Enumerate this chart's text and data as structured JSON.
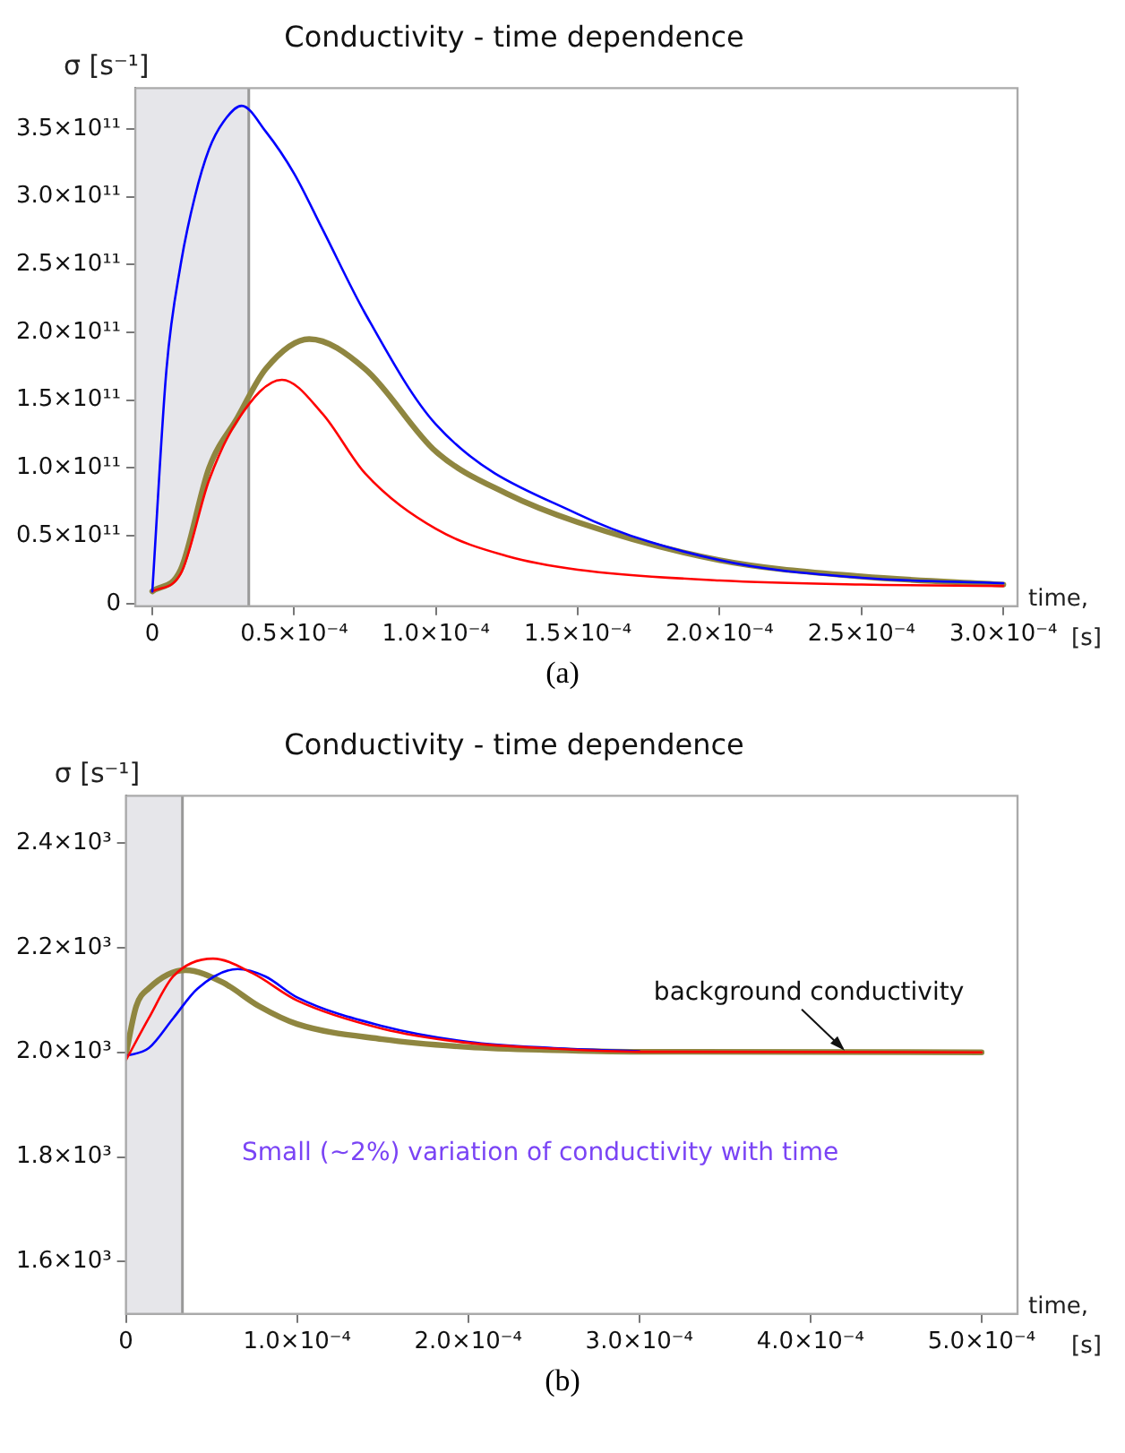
{
  "chart_data": [
    {
      "type": "line",
      "title": "Conductivity - time dependence",
      "ylabel": "σ [s⁻¹]",
      "xlabel": "time, [s]",
      "xlim": [
        -6e-06,
        0.000305
      ],
      "ylim": [
        -2000000000.0,
        380000000000.0
      ],
      "xticks": [
        {
          "value": 0,
          "label": "0"
        },
        {
          "value": 5e-05,
          "label": "0.5×10⁻⁴"
        },
        {
          "value": 0.0001,
          "label": "1.0×10⁻⁴"
        },
        {
          "value": 0.00015,
          "label": "1.5×10⁻⁴"
        },
        {
          "value": 0.0002,
          "label": "2.0×10⁻⁴"
        },
        {
          "value": 0.00025,
          "label": "2.5×10⁻⁴"
        },
        {
          "value": 0.0003,
          "label": "3.0×10⁻⁴"
        }
      ],
      "yticks": [
        {
          "value": 0,
          "label": "0"
        },
        {
          "value": 50000000000.0,
          "label": "0.5×10¹¹"
        },
        {
          "value": 100000000000.0,
          "label": "1.0×10¹¹"
        },
        {
          "value": 150000000000.0,
          "label": "1.5×10¹¹"
        },
        {
          "value": 200000000000.0,
          "label": "2.0×10¹¹"
        },
        {
          "value": 250000000000.0,
          "label": "2.5×10¹¹"
        },
        {
          "value": 300000000000.0,
          "label": "3.0×10¹¹"
        },
        {
          "value": 350000000000.0,
          "label": "3.5×10¹¹"
        }
      ],
      "grid": false,
      "legend": false,
      "marker": "none",
      "line_style": "solid",
      "bands": [
        {
          "axis": "x",
          "from": -6e-06,
          "to": 3.4e-05,
          "color": "#e6e6ea"
        }
      ],
      "ref_lines": [
        {
          "axis": "x",
          "value": 3.4e-05,
          "color": "#999999"
        }
      ],
      "annotations": [
        "(a)"
      ],
      "series": [
        {
          "color": "#0000ff",
          "x": [
            0,
            5e-06,
            1e-05,
            1.5e-05,
            2e-05,
            2.5e-05,
            3.15e-05,
            4e-05,
            5e-05,
            6e-05,
            7.5e-05,
            0.0001,
            0.00015,
            0.0002,
            0.00025,
            0.0003
          ],
          "values": [
            9000000000.0,
            173000000000.0,
            250000000000.0,
            300000000000.0,
            335000000000.0,
            355000000000.0,
            367000000000.0,
            348000000000.0,
            317000000000.0,
            276000000000.0,
            214000000000.0,
            132000000000.0,
            66000000000.0,
            32000000000.0,
            19000000000.0,
            15000000000.0
          ]
        },
        {
          "color": "#ff0000",
          "x": [
            0,
            1e-05,
            2e-05,
            3e-05,
            4.57e-05,
            6e-05,
            7.5e-05,
            0.0001,
            0.000125,
            0.00015,
            0.0002,
            0.00025,
            0.0003
          ],
          "values": [
            9000000000.0,
            22000000000.0,
            91000000000.0,
            135000000000.0,
            165000000000.0,
            140000000000.0,
            96000000000.0,
            55000000000.0,
            35000000000.0,
            25000000000.0,
            17000000000.0,
            14000000000.0,
            13000000000.0
          ]
        },
        {
          "color": "#8f8640",
          "x": [
            0,
            1e-05,
            2e-05,
            3e-05,
            4e-05,
            5.53e-05,
            7.5e-05,
            0.0001,
            0.000125,
            0.00015,
            0.0002,
            0.00025,
            0.0003
          ],
          "values": [
            9000000000.0,
            25000000000.0,
            100000000000.0,
            137000000000.0,
            173000000000.0,
            195000000000.0,
            173000000000.0,
            112000000000.0,
            81000000000.0,
            60000000000.0,
            32000000000.0,
            20000000000.0,
            14000000000.0
          ]
        }
      ]
    },
    {
      "type": "line",
      "title": "Conductivity - time dependence",
      "ylabel": "σ [s⁻¹]",
      "xlabel": "time, [s]",
      "xlim": [
        0,
        0.000521
      ],
      "ylim": [
        1500,
        2490
      ],
      "xticks": [
        {
          "value": 0,
          "label": "0"
        },
        {
          "value": 0.0001,
          "label": "1.0×10⁻⁴"
        },
        {
          "value": 0.0002,
          "label": "2.0×10⁻⁴"
        },
        {
          "value": 0.0003,
          "label": "3.0×10⁻⁴"
        },
        {
          "value": 0.0004,
          "label": "4.0×10⁻⁴"
        },
        {
          "value": 0.0005,
          "label": "5.0×10⁻⁴"
        }
      ],
      "yticks": [
        {
          "value": 1600,
          "label": "1.6×10³"
        },
        {
          "value": 1800,
          "label": "1.8×10³"
        },
        {
          "value": 2000,
          "label": "2.0×10³"
        },
        {
          "value": 2200,
          "label": "2.2×10³"
        },
        {
          "value": 2400,
          "label": "2.4×10³"
        }
      ],
      "grid": false,
      "legend": false,
      "marker": "none",
      "line_style": "solid",
      "bands": [
        {
          "axis": "x",
          "from": 0,
          "to": 3.3e-05,
          "color": "#e6e6ea"
        }
      ],
      "ref_lines": [
        {
          "axis": "x",
          "value": 3.3e-05,
          "color": "#999999"
        }
      ],
      "annotations": [
        {
          "text": "background conductivity",
          "x": 0.00042,
          "y": 2000
        },
        "Small (~2%) variation of conductivity with time",
        "(b)"
      ],
      "series": [
        {
          "color": "#ff0000",
          "x": [
            0,
            1.33e-05,
            2.76e-05,
            5.09e-05,
            7.4e-05,
            0.0001,
            0.00015,
            0.0002,
            0.00025,
            0.0003,
            0.0005
          ],
          "values": [
            1985,
            2065,
            2145,
            2179,
            2151,
            2099,
            2045,
            2018,
            2007,
            2001,
            2000
          ]
        },
        {
          "color": "#0000ff",
          "x": [
            0,
            1.33e-05,
            2.76e-05,
            4.19e-05,
            6.52e-05,
            8.14e-05,
            0.0001,
            0.00015,
            0.0002,
            0.00025,
            0.0003
          ],
          "values": [
            1993,
            2008,
            2065,
            2122,
            2159,
            2145,
            2105,
            2050,
            2020,
            2008,
            2002
          ]
        },
        {
          "color": "#8f8640",
          "x": [
            0,
            6e-06,
            1.33e-05,
            3.48e-05,
            5.63e-05,
            7.78e-05,
            0.0001,
            0.00015,
            0.0002,
            0.00025,
            0.0003,
            0.0005
          ],
          "values": [
            1997,
            2088,
            2122,
            2157,
            2134,
            2088,
            2054,
            2025,
            2010,
            2004,
            2001,
            2000
          ]
        }
      ]
    }
  ]
}
